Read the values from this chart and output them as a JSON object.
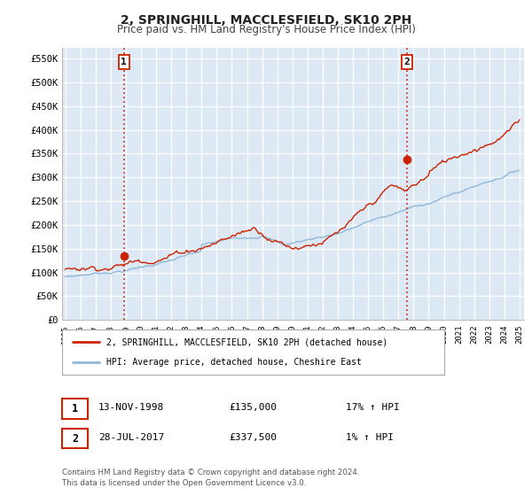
{
  "title": "2, SPRINGHILL, MACCLESFIELD, SK10 2PH",
  "subtitle": "Price paid vs. HM Land Registry's House Price Index (HPI)",
  "title_fontsize": 10,
  "subtitle_fontsize": 8.5,
  "background_color": "#ffffff",
  "plot_bg_color": "#dce9f5",
  "grid_color": "#ffffff",
  "ylabel_ticks": [
    "£0",
    "£50K",
    "£100K",
    "£150K",
    "£200K",
    "£250K",
    "£300K",
    "£350K",
    "£400K",
    "£450K",
    "£500K",
    "£550K"
  ],
  "ylabel_values": [
    0,
    50000,
    100000,
    150000,
    200000,
    250000,
    300000,
    350000,
    400000,
    450000,
    500000,
    550000
  ],
  "xlim_start": 1994.8,
  "xlim_end": 2025.3,
  "ylim_min": 0,
  "ylim_max": 572000,
  "sale1_date": 1998.87,
  "sale1_price": 135000,
  "sale1_label": "1",
  "sale2_date": 2017.57,
  "sale2_price": 337500,
  "sale2_label": "2",
  "marker_color": "#cc2200",
  "marker_size": 6,
  "vline_color": "#cc2200",
  "hpi_line_color": "#90b8d8",
  "price_line_color": "#cc2200",
  "legend_line1": "2, SPRINGHILL, MACCLESFIELD, SK10 2PH (detached house)",
  "legend_line2": "HPI: Average price, detached house, Cheshire East",
  "table_row1": [
    "1",
    "13-NOV-1998",
    "£135,000",
    "17% ↑ HPI"
  ],
  "table_row2": [
    "2",
    "28-JUL-2017",
    "£337,500",
    "1% ↑ HPI"
  ],
  "footer": "Contains HM Land Registry data © Crown copyright and database right 2024.\nThis data is licensed under the Open Government Licence v3.0."
}
